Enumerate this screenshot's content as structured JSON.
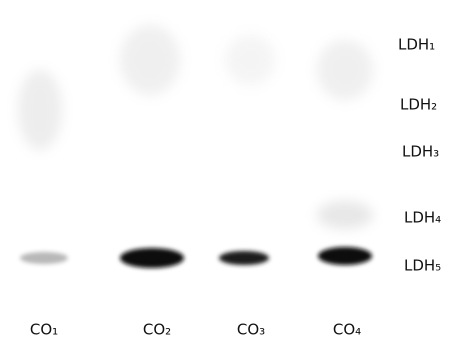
{
  "lanes": [
    "CO₁",
    "CO₂",
    "CO₃",
    "CO₄"
  ],
  "bands": [
    "LDH₁",
    "LDH₂",
    "LDH₃",
    "LDH₄",
    "LDH₅"
  ]
}
